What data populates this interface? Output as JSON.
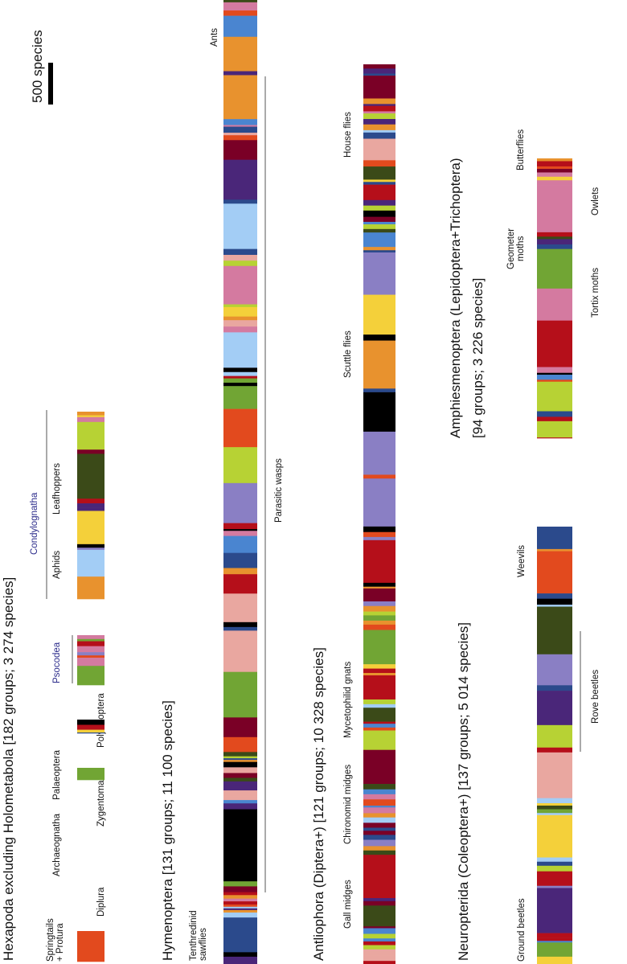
{
  "scale_bar": {
    "label": "500 species"
  },
  "panels": [
    {
      "title": "Hexapoda excluding Holometabola [182 groups; 3 274 species]",
      "labels": [
        "Springtails",
        "+ Protura",
        "Diplura",
        "Archaeognatha",
        "Zygentoma",
        "Palaeoptera",
        "Polyneoptera",
        "Psocodea",
        "Aphids",
        "Condylognatha",
        "Leafhoppers"
      ]
    },
    {
      "title": "Hymenoptera [131 groups; 11 100 species]",
      "labels": [
        "Tenthredinid",
        "sawflies",
        "Parasitic wasps",
        "Ants"
      ]
    },
    {
      "title": "Antliophora (Diptera+) [121 groups; 10 328 species]",
      "labels": [
        "Gall midges",
        "Chironomid midges",
        "Mycetophilid gnats",
        "Scuttle flies",
        "House flies"
      ]
    },
    {
      "title": "Neuropterida (Coleoptera+) [137 groups; 5 014 species]",
      "labels": [
        "Ground beetles",
        "Rove beetles",
        "Weevils"
      ]
    },
    {
      "title": "Amphiesmenoptera (Lepidoptera+Trichoptera)",
      "subtitle": "[94 groups; 3 226 species]",
      "labels": [
        "Tortix moths",
        "Geometer",
        "moths",
        "Owlets",
        "Butterflies"
      ]
    }
  ]
}
